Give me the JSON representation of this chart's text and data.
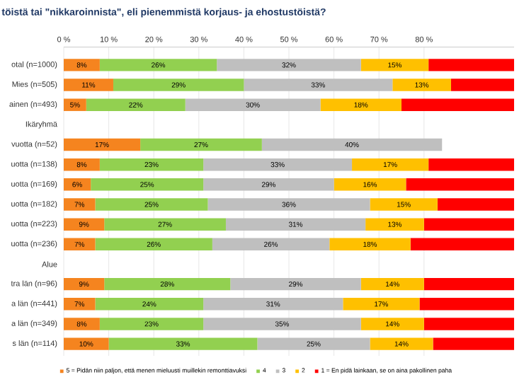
{
  "chart_data": {
    "type": "bar",
    "orientation": "horizontal",
    "stacked": true,
    "title": "töistä tai \"nikkaroinnista\", eli pienemmistä korjaus- ja ehostustöistä?",
    "categories": [
      "otal (n=1000)",
      "Mies (n=505)",
      "ainen (n=493)",
      "Ikäryhmä",
      "vuotta (n=52)",
      "uotta (n=138)",
      "uotta (n=169)",
      "uotta (n=182)",
      "uotta (n=223)",
      "uotta (n=236)",
      "Alue",
      "tra län (n=96)",
      "a län (n=441)",
      "a län (n=349)",
      "s län (n=114)"
    ],
    "series": [
      {
        "name": "5 = Pidän niin paljon, että menen mieluusti muillekin remonttiavuksi",
        "color": "#f5841f",
        "values": [
          8,
          11,
          5,
          null,
          17,
          8,
          6,
          7,
          9,
          7,
          null,
          9,
          7,
          8,
          10
        ],
        "value_labels": [
          "8%",
          "11%",
          "5%",
          null,
          "17%",
          "8%",
          "6%",
          "7%",
          "9%",
          "7%",
          null,
          "9%",
          "7%",
          "8%",
          "10%"
        ]
      },
      {
        "name": "4",
        "color": "#92d050",
        "values": [
          26,
          29,
          22,
          null,
          27,
          23,
          25,
          25,
          27,
          26,
          null,
          28,
          24,
          23,
          33
        ],
        "value_labels": [
          "26%",
          "29%",
          "22%",
          null,
          "27%",
          "23%",
          "25%",
          "25%",
          "27%",
          "26%",
          null,
          "28%",
          "24%",
          "23%",
          "33%"
        ]
      },
      {
        "name": "3",
        "color": "#bfbfbf",
        "values": [
          32,
          33,
          30,
          null,
          40,
          33,
          29,
          36,
          31,
          26,
          null,
          29,
          31,
          35,
          25
        ],
        "value_labels": [
          "32%",
          "33%",
          "30%",
          null,
          "40%",
          "33%",
          "29%",
          "36%",
          "31%",
          "26%",
          null,
          "29%",
          "31%",
          "35%",
          "25%"
        ]
      },
      {
        "name": "2",
        "color": "#ffc000",
        "values": [
          15,
          13,
          18,
          null,
          null,
          17,
          16,
          15,
          13,
          18,
          null,
          14,
          17,
          14,
          14
        ],
        "value_labels": [
          "15%",
          "13%",
          "18%",
          null,
          null,
          "17%",
          "16%",
          "15%",
          "13%",
          "18%",
          null,
          "14%",
          "17%",
          "14%",
          "14%"
        ]
      },
      {
        "name": "1 = En pidä lainkaan, se on aina pakollinen paha",
        "color": "#ff0000",
        "values": [
          19,
          14,
          25,
          null,
          null,
          19,
          24,
          17,
          20,
          23,
          null,
          20,
          21,
          20,
          18
        ],
        "value_labels": [
          null,
          null,
          null,
          null,
          null,
          null,
          null,
          null,
          null,
          null,
          null,
          null,
          null,
          null,
          null
        ]
      }
    ],
    "xlim": [
      0,
      100
    ],
    "xticks": [
      {
        "value": 0,
        "label": "0 %"
      },
      {
        "value": 10,
        "label": "10 %"
      },
      {
        "value": 20,
        "label": "20 %"
      },
      {
        "value": 30,
        "label": "30 %"
      },
      {
        "value": 40,
        "label": "40 %"
      },
      {
        "value": 50,
        "label": "50 %"
      },
      {
        "value": 60,
        "label": "60 %"
      },
      {
        "value": 70,
        "label": "70 %"
      },
      {
        "value": 80,
        "label": "80 %"
      }
    ],
    "grid": "x",
    "legend": "bottom"
  }
}
